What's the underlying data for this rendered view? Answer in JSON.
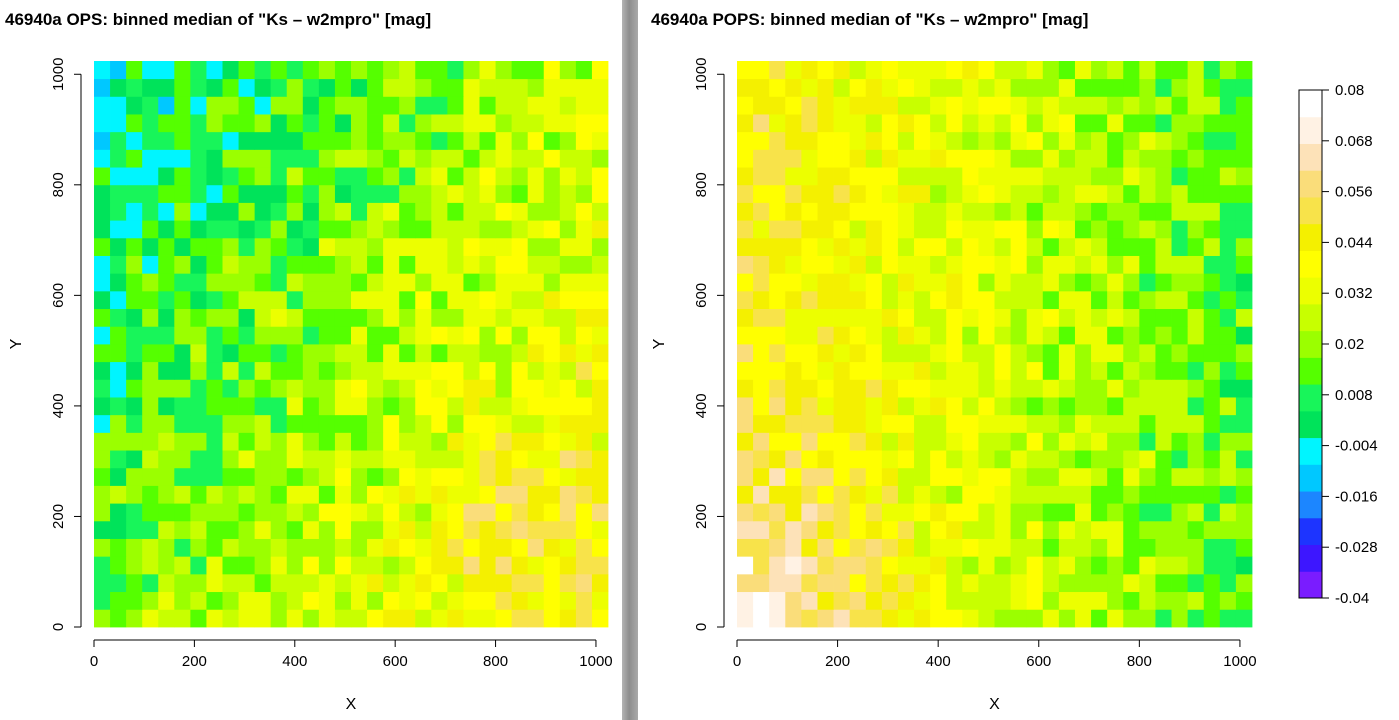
{
  "chart_data": [
    {
      "type": "heatmap",
      "title": "46940a OPS: binned median of \"Ks – w2mpro\" [mag]",
      "xlabel": "X",
      "ylabel": "Y",
      "xlim": [
        0,
        1024
      ],
      "ylim": [
        0,
        1024
      ],
      "xticks": [
        0,
        200,
        400,
        600,
        800,
        1000
      ],
      "yticks": [
        0,
        200,
        400,
        600,
        800,
        1000
      ],
      "tick_labels": [
        "0",
        "200",
        "400",
        "600",
        "800",
        "1000"
      ],
      "bins": [
        32,
        32
      ],
      "pattern": "mostly 0.008 to 0.044 mag; lower values (-0.016 to 0.008) on the left half, higher values (0.044 to 0.08) toward the lower right",
      "value_range": [
        -0.04,
        0.08
      ],
      "spatial_model": {
        "base": 0.022,
        "x_coef": 0.016,
        "y_coef": -0.009,
        "noise": 0.013
      }
    },
    {
      "type": "heatmap",
      "title": "46940a POPS: binned median of \"Ks – w2mpro\" [mag]",
      "xlabel": "X",
      "ylabel": "Y",
      "xlim": [
        0,
        1024
      ],
      "ylim": [
        0,
        1024
      ],
      "xticks": [
        0,
        200,
        400,
        600,
        800,
        1000
      ],
      "yticks": [
        0,
        200,
        400,
        600,
        800,
        1000
      ],
      "tick_labels": [
        "0",
        "200",
        "400",
        "600",
        "800",
        "1000"
      ],
      "bins": [
        32,
        32
      ],
      "pattern": "higher values (0.044 to 0.08) in the lower-left corner, lower values (-0.016 to 0.02) toward the upper right",
      "value_range": [
        -0.04,
        0.08
      ],
      "spatial_model": {
        "base": 0.03,
        "x_coef": -0.017,
        "y_coef": 0.0,
        "noise": 0.011
      }
    }
  ],
  "colorbar": {
    "breaks": [
      -0.04,
      -0.028,
      -0.016,
      -0.004,
      0.008,
      0.02,
      0.032,
      0.044,
      0.056,
      0.068,
      0.08
    ],
    "labels": [
      "-0.04",
      "-0.028",
      "-0.016",
      "-0.004",
      "0.008",
      "0.02",
      "0.032",
      "0.044",
      "0.056",
      "0.068",
      "0.08"
    ],
    "colors": [
      "#7a1cff",
      "#3d16ff",
      "#1d34ff",
      "#1c86ff",
      "#00c8ff",
      "#00f5ff",
      "#00e35a",
      "#18f55a",
      "#55ff00",
      "#9bff00",
      "#c8ff00",
      "#ecff00",
      "#ffff00",
      "#f4f000",
      "#f8e34a",
      "#fadd7a",
      "#fde2b8",
      "#fff2e4",
      "#ffffff"
    ]
  }
}
